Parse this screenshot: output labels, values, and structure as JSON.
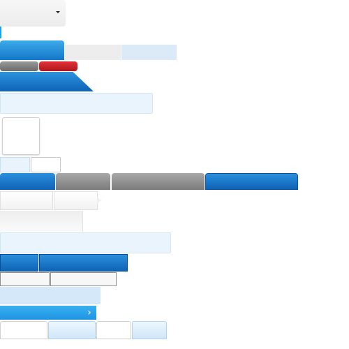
{
  "dropdown": {
    "selected_value": "",
    "caret_icon": "caret-down-icon"
  },
  "tabs_row_1": [
    {
      "label": "",
      "state": "active"
    },
    {
      "label": "",
      "state": "inactive"
    },
    {
      "label": "",
      "state": "hover"
    }
  ],
  "pills": [
    {
      "label": "",
      "color": "#7a7a7a"
    },
    {
      "label": "",
      "color": "#c8202a"
    }
  ],
  "banner": {
    "label": ""
  },
  "inputs": [
    {
      "value": "",
      "placeholder": ""
    },
    {
      "value": "",
      "placeholder": ""
    }
  ],
  "tabs_row_2": [
    {
      "label": "",
      "color": "#1676c6"
    },
    {
      "label": "",
      "color": "#8a8a8a"
    },
    {
      "label": "",
      "color": "#8a8a8a"
    },
    {
      "label": "",
      "color": "#1676c6"
    }
  ],
  "breadcrumb": [
    {
      "label": ""
    },
    {
      "label": ""
    }
  ],
  "blue_buttons": [
    {
      "label": ""
    },
    {
      "label": ""
    }
  ],
  "outline_buttons": [
    {
      "label": ""
    },
    {
      "label": ""
    }
  ],
  "chevron_button": {
    "label": "",
    "icon": "chevron-right-icon",
    "glyph": "›"
  },
  "bottom_tabs": [
    {
      "label": ""
    },
    {
      "label": ""
    },
    {
      "label": ""
    },
    {
      "label": ""
    }
  ],
  "colors": {
    "accent_blue": "#1478c9",
    "light_blue": "#eaf4fd",
    "danger_red": "#c8202a",
    "neutral_grey": "#8a8a8a"
  }
}
